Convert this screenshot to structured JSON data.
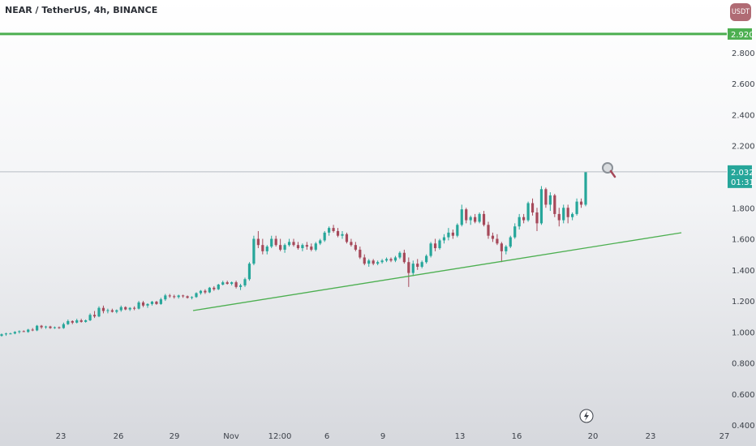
{
  "header": {
    "title": "NEAR / TetherUS, 4h, BINANCE",
    "currency_label": "USDT"
  },
  "chart_data": {
    "type": "candlestick",
    "y_ticks": [
      "2.800",
      "2.600",
      "2.400",
      "2.200",
      "1.800",
      "1.600",
      "1.400",
      "1.200",
      "1.000",
      "0.800",
      "0.600",
      "0.400"
    ],
    "x_ticks": [
      "23",
      "26",
      "29",
      "Nov",
      "12:00",
      "6",
      "9",
      "13",
      "16",
      "20",
      "23",
      "27"
    ],
    "ylim": [
      0.38,
      2.93
    ],
    "grid": false,
    "price_line": {
      "value": 2.032,
      "label": "2.032",
      "countdown": "01:31"
    },
    "resistance_line": {
      "value": 2.92,
      "label": "2.920"
    },
    "colors": {
      "up": "#26a69a",
      "down": "#a6495a",
      "line_green": "#4caf50",
      "price_line": "#b7bdc4"
    },
    "candles": [
      [
        0.975,
        0.99,
        0.97,
        0.985
      ],
      [
        0.985,
        0.995,
        0.975,
        0.99
      ],
      [
        0.99,
        0.995,
        0.985,
        0.99
      ],
      [
        0.99,
        1.005,
        0.985,
        1.0
      ],
      [
        1.0,
        1.01,
        0.99,
        1.005
      ],
      [
        1.005,
        1.01,
        1.0,
        1.0
      ],
      [
        1.0,
        1.02,
        0.995,
        1.015
      ],
      [
        1.015,
        1.025,
        1.005,
        1.01
      ],
      [
        1.01,
        1.045,
        1.005,
        1.04
      ],
      [
        1.04,
        1.045,
        1.02,
        1.03
      ],
      [
        1.03,
        1.04,
        1.02,
        1.035
      ],
      [
        1.035,
        1.04,
        1.02,
        1.025
      ],
      [
        1.025,
        1.035,
        1.02,
        1.03
      ],
      [
        1.03,
        1.035,
        1.02,
        1.025
      ],
      [
        1.025,
        1.06,
        1.02,
        1.05
      ],
      [
        1.05,
        1.08,
        1.045,
        1.07
      ],
      [
        1.07,
        1.075,
        1.05,
        1.06
      ],
      [
        1.06,
        1.085,
        1.055,
        1.075
      ],
      [
        1.075,
        1.085,
        1.06,
        1.065
      ],
      [
        1.065,
        1.08,
        1.06,
        1.075
      ],
      [
        1.075,
        1.12,
        1.07,
        1.11
      ],
      [
        1.11,
        1.135,
        1.09,
        1.1
      ],
      [
        1.1,
        1.165,
        1.095,
        1.155
      ],
      [
        1.155,
        1.17,
        1.12,
        1.135
      ],
      [
        1.135,
        1.15,
        1.12,
        1.14
      ],
      [
        1.14,
        1.15,
        1.125,
        1.13
      ],
      [
        1.13,
        1.145,
        1.12,
        1.14
      ],
      [
        1.14,
        1.17,
        1.13,
        1.16
      ],
      [
        1.16,
        1.165,
        1.14,
        1.145
      ],
      [
        1.145,
        1.16,
        1.135,
        1.155
      ],
      [
        1.155,
        1.165,
        1.14,
        1.15
      ],
      [
        1.15,
        1.2,
        1.145,
        1.19
      ],
      [
        1.19,
        1.2,
        1.16,
        1.17
      ],
      [
        1.17,
        1.185,
        1.155,
        1.18
      ],
      [
        1.18,
        1.2,
        1.17,
        1.195
      ],
      [
        1.195,
        1.2,
        1.175,
        1.18
      ],
      [
        1.18,
        1.22,
        1.175,
        1.21
      ],
      [
        1.21,
        1.245,
        1.2,
        1.235
      ],
      [
        1.235,
        1.245,
        1.22,
        1.23
      ],
      [
        1.23,
        1.24,
        1.215,
        1.225
      ],
      [
        1.225,
        1.24,
        1.215,
        1.235
      ],
      [
        1.235,
        1.24,
        1.22,
        1.23
      ],
      [
        1.23,
        1.235,
        1.215,
        1.22
      ],
      [
        1.22,
        1.23,
        1.21,
        1.225
      ],
      [
        1.225,
        1.255,
        1.22,
        1.25
      ],
      [
        1.25,
        1.27,
        1.24,
        1.265
      ],
      [
        1.265,
        1.275,
        1.245,
        1.255
      ],
      [
        1.255,
        1.29,
        1.25,
        1.285
      ],
      [
        1.285,
        1.295,
        1.265,
        1.275
      ],
      [
        1.275,
        1.31,
        1.27,
        1.305
      ],
      [
        1.305,
        1.33,
        1.3,
        1.32
      ],
      [
        1.32,
        1.33,
        1.305,
        1.31
      ],
      [
        1.31,
        1.325,
        1.3,
        1.32
      ],
      [
        1.32,
        1.33,
        1.28,
        1.29
      ],
      [
        1.29,
        1.31,
        1.27,
        1.3
      ],
      [
        1.3,
        1.35,
        1.29,
        1.34
      ],
      [
        1.34,
        1.45,
        1.33,
        1.44
      ],
      [
        1.44,
        1.62,
        1.43,
        1.6
      ],
      [
        1.6,
        1.65,
        1.54,
        1.56
      ],
      [
        1.56,
        1.6,
        1.5,
        1.52
      ],
      [
        1.52,
        1.56,
        1.5,
        1.55
      ],
      [
        1.55,
        1.62,
        1.54,
        1.6
      ],
      [
        1.6,
        1.62,
        1.55,
        1.56
      ],
      [
        1.56,
        1.6,
        1.52,
        1.53
      ],
      [
        1.53,
        1.57,
        1.51,
        1.56
      ],
      [
        1.56,
        1.6,
        1.55,
        1.58
      ],
      [
        1.58,
        1.6,
        1.55,
        1.56
      ],
      [
        1.56,
        1.58,
        1.53,
        1.54
      ],
      [
        1.54,
        1.57,
        1.52,
        1.56
      ],
      [
        1.56,
        1.58,
        1.53,
        1.55
      ],
      [
        1.55,
        1.57,
        1.52,
        1.53
      ],
      [
        1.53,
        1.58,
        1.52,
        1.57
      ],
      [
        1.57,
        1.6,
        1.56,
        1.59
      ],
      [
        1.59,
        1.65,
        1.58,
        1.64
      ],
      [
        1.64,
        1.68,
        1.62,
        1.67
      ],
      [
        1.67,
        1.69,
        1.64,
        1.65
      ],
      [
        1.65,
        1.67,
        1.61,
        1.62
      ],
      [
        1.62,
        1.65,
        1.6,
        1.63
      ],
      [
        1.63,
        1.64,
        1.57,
        1.58
      ],
      [
        1.58,
        1.6,
        1.55,
        1.56
      ],
      [
        1.56,
        1.58,
        1.52,
        1.53
      ],
      [
        1.53,
        1.55,
        1.47,
        1.48
      ],
      [
        1.48,
        1.5,
        1.43,
        1.44
      ],
      [
        1.44,
        1.47,
        1.42,
        1.46
      ],
      [
        1.46,
        1.47,
        1.43,
        1.44
      ],
      [
        1.44,
        1.46,
        1.43,
        1.45
      ],
      [
        1.45,
        1.47,
        1.44,
        1.46
      ],
      [
        1.46,
        1.48,
        1.45,
        1.47
      ],
      [
        1.47,
        1.48,
        1.45,
        1.46
      ],
      [
        1.46,
        1.49,
        1.45,
        1.48
      ],
      [
        1.48,
        1.52,
        1.47,
        1.51
      ],
      [
        1.51,
        1.53,
        1.44,
        1.45
      ],
      [
        1.45,
        1.48,
        1.29,
        1.38
      ],
      [
        1.38,
        1.46,
        1.36,
        1.44
      ],
      [
        1.44,
        1.47,
        1.4,
        1.42
      ],
      [
        1.42,
        1.46,
        1.41,
        1.45
      ],
      [
        1.45,
        1.5,
        1.44,
        1.49
      ],
      [
        1.49,
        1.58,
        1.48,
        1.57
      ],
      [
        1.57,
        1.6,
        1.52,
        1.54
      ],
      [
        1.54,
        1.6,
        1.53,
        1.59
      ],
      [
        1.59,
        1.63,
        1.57,
        1.61
      ],
      [
        1.61,
        1.67,
        1.59,
        1.64
      ],
      [
        1.64,
        1.66,
        1.6,
        1.62
      ],
      [
        1.62,
        1.7,
        1.61,
        1.69
      ],
      [
        1.69,
        1.82,
        1.68,
        1.79
      ],
      [
        1.79,
        1.8,
        1.7,
        1.72
      ],
      [
        1.72,
        1.75,
        1.69,
        1.74
      ],
      [
        1.74,
        1.76,
        1.7,
        1.71
      ],
      [
        1.71,
        1.77,
        1.7,
        1.76
      ],
      [
        1.76,
        1.78,
        1.68,
        1.69
      ],
      [
        1.69,
        1.71,
        1.6,
        1.62
      ],
      [
        1.62,
        1.64,
        1.58,
        1.6
      ],
      [
        1.6,
        1.63,
        1.56,
        1.57
      ],
      [
        1.57,
        1.58,
        1.45,
        1.52
      ],
      [
        1.52,
        1.56,
        1.5,
        1.55
      ],
      [
        1.55,
        1.62,
        1.54,
        1.61
      ],
      [
        1.61,
        1.7,
        1.6,
        1.68
      ],
      [
        1.68,
        1.76,
        1.66,
        1.74
      ],
      [
        1.74,
        1.76,
        1.7,
        1.72
      ],
      [
        1.72,
        1.84,
        1.71,
        1.83
      ],
      [
        1.83,
        1.86,
        1.75,
        1.77
      ],
      [
        1.77,
        1.8,
        1.65,
        1.7
      ],
      [
        1.7,
        1.94,
        1.69,
        1.92
      ],
      [
        1.92,
        1.93,
        1.8,
        1.82
      ],
      [
        1.82,
        1.9,
        1.78,
        1.88
      ],
      [
        1.88,
        1.89,
        1.74,
        1.76
      ],
      [
        1.76,
        1.8,
        1.68,
        1.72
      ],
      [
        1.72,
        1.82,
        1.7,
        1.8
      ],
      [
        1.8,
        1.82,
        1.7,
        1.74
      ],
      [
        1.74,
        1.77,
        1.72,
        1.76
      ],
      [
        1.76,
        1.86,
        1.75,
        1.84
      ],
      [
        1.84,
        1.86,
        1.8,
        1.82
      ],
      [
        1.82,
        2.03,
        1.81,
        2.032
      ]
    ]
  }
}
